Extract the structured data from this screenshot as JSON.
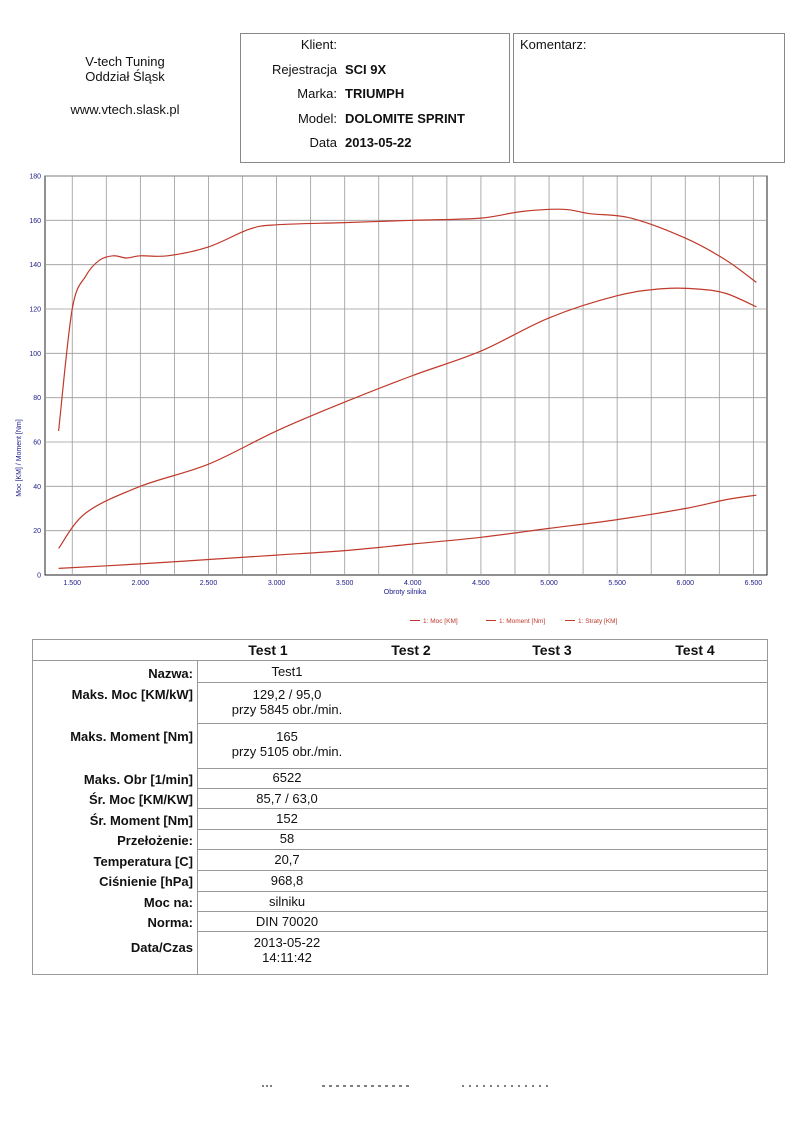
{
  "header": {
    "company_name": "V-tech Tuning",
    "company_branch": "Oddział Śląsk",
    "company_url": "www.vtech.slask.pl",
    "client_fields": [
      {
        "label": "Klient:",
        "value": ""
      },
      {
        "label": "Rejestracja",
        "value": "SCI 9X"
      },
      {
        "label": "Marka:",
        "value": "TRIUMPH"
      },
      {
        "label": "Model:",
        "value": "DOLOMITE SPRINT"
      },
      {
        "label": "Data",
        "value": "2013-05-22"
      }
    ],
    "comment_label": "Komentarz:"
  },
  "chart_data": {
    "type": "line",
    "ylabel": "Moc [KM] / Moment [Nm]",
    "xlabel": "Obroty silnika",
    "xlim": [
      1300,
      6600
    ],
    "ylim": [
      0,
      180
    ],
    "xticks": [
      1500,
      2000,
      2500,
      3000,
      3500,
      4000,
      4500,
      5000,
      5500,
      6000,
      6500
    ],
    "xtick_labels": [
      "1.500",
      "2.000",
      "2.500",
      "3.000",
      "3.500",
      "4.000",
      "4.500",
      "5.000",
      "5.500",
      "6.000",
      "6.500"
    ],
    "yticks": [
      0,
      20,
      40,
      60,
      80,
      100,
      120,
      140,
      160,
      180
    ],
    "ytick_labels": [
      "0",
      "20",
      "40",
      "60",
      "80",
      "100",
      "120",
      "140",
      "160",
      "180"
    ],
    "grid": true,
    "legend_position": "bottom-right",
    "color": "#c0392b",
    "series": [
      {
        "name": "1: Moc [KM]",
        "x": [
          1400,
          1600,
          2000,
          2500,
          3000,
          3500,
          4000,
          4500,
          5000,
          5500,
          5845,
          6100,
          6300,
          6522
        ],
        "y": [
          12,
          28,
          40,
          50,
          65,
          78,
          90,
          101,
          116,
          126,
          129.2,
          129,
          127,
          121
        ]
      },
      {
        "name": "1: Moment [Nm]",
        "x": [
          1400,
          1500,
          1600,
          1700,
          1800,
          1900,
          2000,
          2200,
          2500,
          2800,
          3000,
          3500,
          4000,
          4500,
          4800,
          5105,
          5300,
          5600,
          6000,
          6300,
          6522
        ],
        "y": [
          65,
          120,
          135,
          142,
          144,
          143,
          144,
          144,
          148,
          156,
          158,
          159,
          160,
          161,
          164,
          165,
          163,
          161,
          152,
          142,
          132
        ]
      },
      {
        "name": "1: Straty [KM]",
        "x": [
          1400,
          2000,
          2500,
          3000,
          3500,
          4000,
          4500,
          5000,
          5500,
          6000,
          6300,
          6522
        ],
        "y": [
          3,
          5,
          7,
          9,
          11,
          14,
          17,
          21,
          25,
          30,
          34,
          36
        ]
      }
    ]
  },
  "results": {
    "columns": [
      "Test 1",
      "Test 2",
      "Test 3",
      "Test 4"
    ],
    "rows": [
      {
        "label": "Nazwa:",
        "value": "Test1"
      },
      {
        "label": "Maks. Moc [KM/kW]",
        "value": "129,2 / 95,0",
        "value2": "przy 5845 obr./min."
      },
      {
        "label": "Maks. Moment [Nm]",
        "value": "165",
        "value2": "przy 5105 obr./min."
      },
      {
        "label": "Maks. Obr [1/min]",
        "value": "6522"
      },
      {
        "label": "Śr. Moc [KM/KW]",
        "value": "85,7 / 63,0"
      },
      {
        "label": "Śr. Moment [Nm]",
        "value": "152"
      },
      {
        "label": "Przełożenie:",
        "value": "58"
      },
      {
        "label": "Temperatura [C]",
        "value": "20,7"
      },
      {
        "label": "Ciśnienie [hPa]",
        "value": "968,8"
      },
      {
        "label": "Moc na:",
        "value": "silniku"
      },
      {
        "label": "Norma:",
        "value": "DIN 70020"
      },
      {
        "label": "Data/Czas",
        "value": "2013-05-22",
        "value2": "14:11:42"
      }
    ]
  }
}
